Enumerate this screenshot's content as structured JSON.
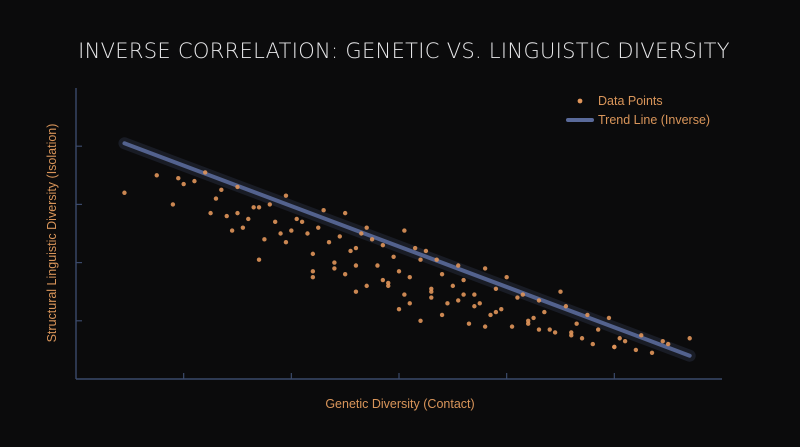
{
  "chart_data": {
    "type": "scatter",
    "title": "INVERSE CORRELATION: GENETIC VS. LINGUISTIC DIVERSITY",
    "xlabel": "Genetic Diversity (Contact)",
    "ylabel": "Structural Linguistic Diversity (Isolation)",
    "xlim": [
      0,
      6
    ],
    "ylim": [
      0,
      5
    ],
    "x_ticks": [
      1,
      2,
      3,
      4,
      5
    ],
    "y_ticks": [
      1,
      2,
      3,
      4
    ],
    "x_tick_labels_shown": false,
    "y_tick_labels_shown": false,
    "grid": false,
    "legend": {
      "position": "top-right",
      "entries": [
        {
          "label": "Data Points",
          "marker": "dot"
        },
        {
          "label": "Trend Line (Inverse)",
          "marker": "line"
        }
      ]
    },
    "colors": {
      "background": "#0b0b0c",
      "points": "#e0955a",
      "trend": "#5a6a9a",
      "axis": "#3b4a6b",
      "title": "#e8e8ea",
      "labels": "#d9955a"
    },
    "trend_line": {
      "x": [
        0.45,
        5.7
      ],
      "y": [
        4.05,
        0.4
      ]
    },
    "series": [
      {
        "name": "Data Points",
        "x": [
          0.45,
          0.75,
          0.95,
          1.1,
          1.3,
          0.9,
          1.2,
          1.5,
          1.7,
          1.95,
          1.0,
          1.4,
          1.6,
          1.8,
          2.1,
          2.3,
          2.0,
          2.5,
          2.7,
          1.25,
          1.55,
          1.75,
          2.05,
          2.25,
          2.45,
          2.65,
          2.85,
          3.05,
          3.25,
          1.35,
          1.65,
          1.85,
          2.15,
          2.35,
          2.55,
          2.75,
          2.95,
          3.15,
          3.35,
          3.55,
          1.45,
          1.95,
          2.2,
          2.4,
          2.6,
          2.8,
          3.0,
          3.2,
          3.4,
          3.6,
          3.8,
          4.0,
          2.2,
          2.5,
          2.7,
          2.9,
          3.1,
          3.3,
          3.5,
          3.7,
          3.9,
          4.1,
          4.3,
          4.5,
          2.6,
          2.85,
          3.05,
          3.3,
          3.55,
          3.75,
          3.95,
          4.15,
          4.35,
          4.55,
          4.75,
          4.95,
          3.0,
          3.2,
          3.45,
          3.65,
          3.85,
          4.05,
          4.25,
          4.45,
          4.65,
          4.85,
          5.05,
          5.25,
          5.45,
          3.6,
          3.9,
          4.2,
          4.4,
          4.6,
          4.8,
          5.0,
          5.2,
          1.7,
          2.2,
          2.6,
          3.1,
          3.4,
          3.8,
          4.3,
          4.7,
          5.1,
          5.5,
          5.7,
          1.5,
          1.9,
          2.4,
          2.9,
          3.3,
          3.7,
          4.2,
          4.6,
          5.0,
          5.35
        ],
        "y": [
          3.2,
          3.5,
          3.45,
          3.4,
          3.1,
          3.0,
          3.55,
          3.3,
          2.95,
          3.15,
          3.35,
          2.8,
          2.75,
          3.0,
          2.7,
          2.9,
          2.55,
          2.85,
          2.6,
          2.85,
          2.6,
          2.4,
          2.75,
          2.6,
          2.45,
          2.5,
          2.3,
          2.55,
          2.2,
          3.25,
          2.95,
          2.7,
          2.5,
          2.35,
          2.2,
          2.4,
          2.1,
          2.25,
          2.05,
          1.95,
          2.55,
          2.35,
          2.15,
          2.0,
          2.25,
          1.95,
          1.85,
          2.05,
          1.8,
          1.7,
          1.9,
          1.75,
          1.85,
          1.8,
          1.6,
          1.65,
          1.75,
          1.5,
          1.6,
          1.45,
          1.55,
          1.4,
          1.35,
          1.5,
          1.95,
          1.7,
          1.45,
          1.55,
          1.35,
          1.3,
          1.2,
          1.45,
          1.15,
          1.25,
          1.1,
          1.05,
          1.2,
          1.0,
          1.3,
          0.95,
          1.1,
          0.9,
          1.05,
          0.8,
          0.95,
          0.85,
          0.7,
          0.75,
          0.65,
          1.45,
          1.15,
          0.95,
          0.85,
          0.75,
          0.6,
          0.55,
          0.5,
          2.05,
          1.75,
          1.5,
          1.3,
          1.1,
          0.9,
          0.85,
          0.7,
          0.65,
          0.6,
          0.7,
          2.85,
          2.5,
          1.9,
          1.6,
          1.4,
          1.25,
          1.0,
          0.8,
          0.55,
          0.45
        ]
      }
    ]
  }
}
